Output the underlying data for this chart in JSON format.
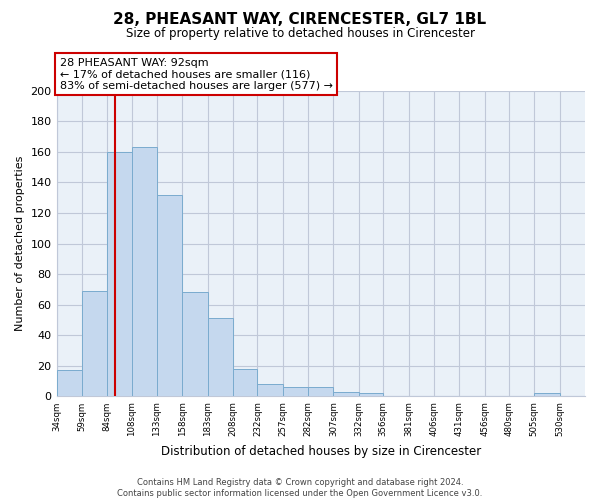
{
  "title": "28, PHEASANT WAY, CIRENCESTER, GL7 1BL",
  "subtitle": "Size of property relative to detached houses in Cirencester",
  "xlabel": "Distribution of detached houses by size in Cirencester",
  "ylabel": "Number of detached properties",
  "bin_labels": [
    "34sqm",
    "59sqm",
    "84sqm",
    "108sqm",
    "133sqm",
    "158sqm",
    "183sqm",
    "208sqm",
    "232sqm",
    "257sqm",
    "282sqm",
    "307sqm",
    "332sqm",
    "356sqm",
    "381sqm",
    "406sqm",
    "431sqm",
    "456sqm",
    "480sqm",
    "505sqm",
    "530sqm"
  ],
  "bin_edges": [
    34,
    59,
    84,
    108,
    133,
    158,
    183,
    208,
    232,
    257,
    282,
    307,
    332,
    356,
    381,
    406,
    431,
    456,
    480,
    505,
    530
  ],
  "bar_heights": [
    17,
    69,
    160,
    163,
    132,
    68,
    51,
    18,
    8,
    6,
    6,
    3,
    2,
    0,
    0,
    0,
    0,
    0,
    0,
    2,
    0
  ],
  "bar_color": "#c5d8ee",
  "bar_edge_color": "#7aabce",
  "property_size": 92,
  "vline_color": "#cc0000",
  "annotation_text": "28 PHEASANT WAY: 92sqm\n← 17% of detached houses are smaller (116)\n83% of semi-detached houses are larger (577) →",
  "annotation_box_facecolor": "#ffffff",
  "annotation_box_edge": "#cc0000",
  "ylim": [
    0,
    200
  ],
  "yticks": [
    0,
    20,
    40,
    60,
    80,
    100,
    120,
    140,
    160,
    180,
    200
  ],
  "footer": "Contains HM Land Registry data © Crown copyright and database right 2024.\nContains public sector information licensed under the Open Government Licence v3.0.",
  "background_color": "#ffffff",
  "plot_bg_color": "#eaf1f8",
  "grid_color": "#c0c8d8"
}
